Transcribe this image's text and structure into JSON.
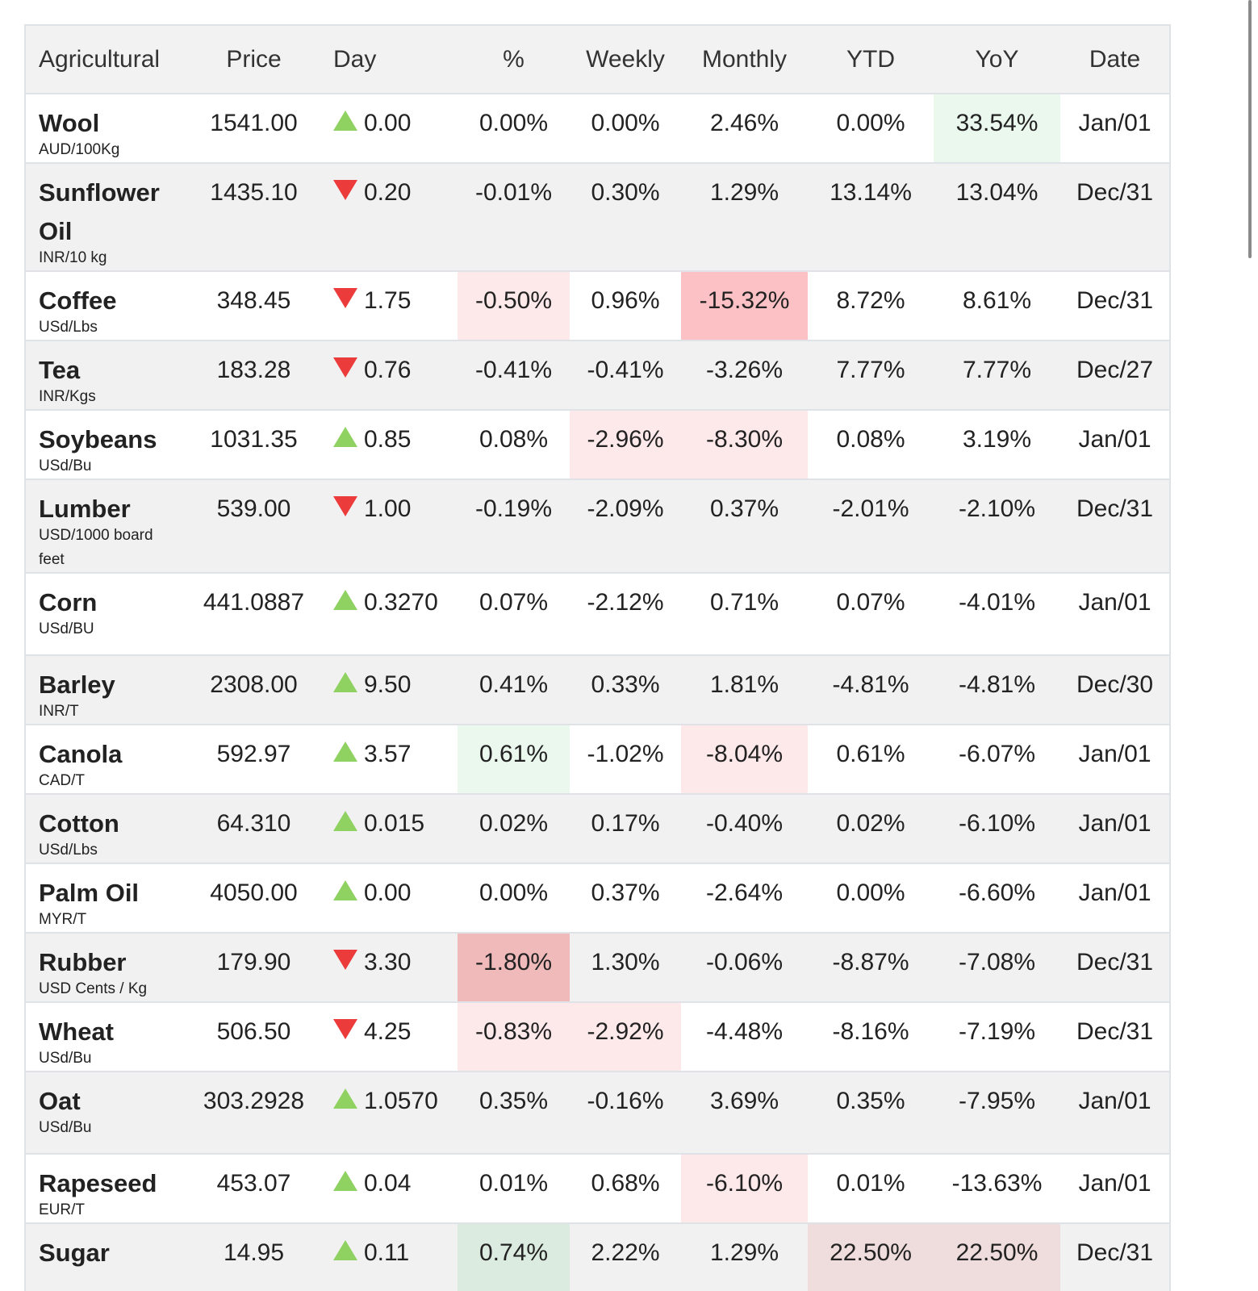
{
  "headers": [
    "Agricultural",
    "Price",
    "Day",
    "%",
    "Weekly",
    "Monthly",
    "YTD",
    "YoY",
    "Date"
  ],
  "rows": [
    {
      "name": "Wool",
      "unit": "AUD/100Kg",
      "price": "1541.00",
      "dir": "up",
      "day": "0.00",
      "pct": "0.00%",
      "weekly": "0.00%",
      "monthly": "2.46%",
      "ytd": "0.00%",
      "yoy": "33.54%",
      "date": "Jan/01",
      "bg": {
        "yoy": "lg"
      }
    },
    {
      "name": "Sunflower Oil",
      "unit": "INR/10 kg",
      "price": "1435.10",
      "dir": "down",
      "day": "0.20",
      "pct": "-0.01%",
      "weekly": "0.30%",
      "monthly": "1.29%",
      "ytd": "13.14%",
      "yoy": "13.04%",
      "date": "Dec/31",
      "bg": {}
    },
    {
      "name": "Coffee",
      "unit": "USd/Lbs",
      "price": "348.45",
      "dir": "down",
      "day": "1.75",
      "pct": "-0.50%",
      "weekly": "0.96%",
      "monthly": "-15.32%",
      "ytd": "8.72%",
      "yoy": "8.61%",
      "date": "Dec/31",
      "bg": {
        "pct": "lr",
        "monthly": "mr"
      }
    },
    {
      "name": "Tea",
      "unit": "INR/Kgs",
      "price": "183.28",
      "dir": "down",
      "day": "0.76",
      "pct": "-0.41%",
      "weekly": "-0.41%",
      "monthly": "-3.26%",
      "ytd": "7.77%",
      "yoy": "7.77%",
      "date": "Dec/27",
      "bg": {}
    },
    {
      "name": "Soybeans",
      "unit": "USd/Bu",
      "price": "1031.35",
      "dir": "up",
      "day": "0.85",
      "pct": "0.08%",
      "weekly": "-2.96%",
      "monthly": "-8.30%",
      "ytd": "0.08%",
      "yoy": "3.19%",
      "date": "Jan/01",
      "bg": {
        "weekly": "lr",
        "monthly": "lr"
      }
    },
    {
      "name": "Lumber",
      "unit": "USD/1000 board feet",
      "price": "539.00",
      "dir": "down",
      "day": "1.00",
      "pct": "-0.19%",
      "weekly": "-2.09%",
      "monthly": "0.37%",
      "ytd": "-2.01%",
      "yoy": "-2.10%",
      "date": "Dec/31",
      "bg": {}
    },
    {
      "name": "Corn",
      "unit": "USd/BU",
      "price": "441.0887",
      "dir": "up",
      "day": "0.3270",
      "pct": "0.07%",
      "weekly": "-2.12%",
      "monthly": "0.71%",
      "ytd": "0.07%",
      "yoy": "-4.01%",
      "date": "Jan/01",
      "bg": {}
    },
    {
      "name": "Barley",
      "unit": "INR/T",
      "price": "2308.00",
      "dir": "up",
      "day": "9.50",
      "pct": "0.41%",
      "weekly": "0.33%",
      "monthly": "1.81%",
      "ytd": "-4.81%",
      "yoy": "-4.81%",
      "date": "Dec/30",
      "bg": {}
    },
    {
      "name": "Canola",
      "unit": "CAD/T",
      "price": "592.97",
      "dir": "up",
      "day": "3.57",
      "pct": "0.61%",
      "weekly": "-1.02%",
      "monthly": "-8.04%",
      "ytd": "0.61%",
      "yoy": "-6.07%",
      "date": "Jan/01",
      "bg": {
        "pct": "lg",
        "monthly": "lr"
      }
    },
    {
      "name": "Cotton",
      "unit": "USd/Lbs",
      "price": "64.310",
      "dir": "up",
      "day": "0.015",
      "pct": "0.02%",
      "weekly": "0.17%",
      "monthly": "-0.40%",
      "ytd": "0.02%",
      "yoy": "-6.10%",
      "date": "Jan/01",
      "bg": {}
    },
    {
      "name": "Palm Oil",
      "unit": "MYR/T",
      "price": "4050.00",
      "dir": "up",
      "day": "0.00",
      "pct": "0.00%",
      "weekly": "0.37%",
      "monthly": "-2.64%",
      "ytd": "0.00%",
      "yoy": "-6.60%",
      "date": "Jan/01",
      "bg": {}
    },
    {
      "name": "Rubber",
      "unit": "USD Cents / Kg",
      "price": "179.90",
      "dir": "down",
      "day": "3.30",
      "pct": "-1.80%",
      "weekly": "1.30%",
      "monthly": "-0.06%",
      "ytd": "-8.87%",
      "yoy": "-7.08%",
      "date": "Dec/31",
      "bg": {
        "pct": "dr"
      }
    },
    {
      "name": "Wheat",
      "unit": "USd/Bu",
      "price": "506.50",
      "dir": "down",
      "day": "4.25",
      "pct": "-0.83%",
      "weekly": "-2.92%",
      "monthly": "-4.48%",
      "ytd": "-8.16%",
      "yoy": "-7.19%",
      "date": "Dec/31",
      "bg": {
        "pct": "lr",
        "weekly": "lr"
      }
    },
    {
      "name": "Oat",
      "unit": "USd/Bu",
      "price": "303.2928",
      "dir": "up",
      "day": "1.0570",
      "pct": "0.35%",
      "weekly": "-0.16%",
      "monthly": "3.69%",
      "ytd": "0.35%",
      "yoy": "-7.95%",
      "date": "Jan/01",
      "bg": {}
    },
    {
      "name": "Rapeseed",
      "unit": "EUR/T",
      "price": "453.07",
      "dir": "up",
      "day": "0.04",
      "pct": "0.01%",
      "weekly": "0.68%",
      "monthly": "-6.10%",
      "ytd": "0.01%",
      "yoy": "-13.63%",
      "date": "Jan/01",
      "bg": {
        "monthly": "lr"
      }
    },
    {
      "name": "Sugar",
      "unit": "",
      "price": "14.95",
      "dir": "up",
      "day": "0.11",
      "pct": "0.74%",
      "weekly": "2.22%",
      "monthly": "1.29%",
      "ytd": "22.50%",
      "yoy": "22.50%",
      "date": "Dec/31",
      "bg": {
        "pct": "sg",
        "ytd": "sr",
        "yoy": "sr"
      }
    }
  ]
}
